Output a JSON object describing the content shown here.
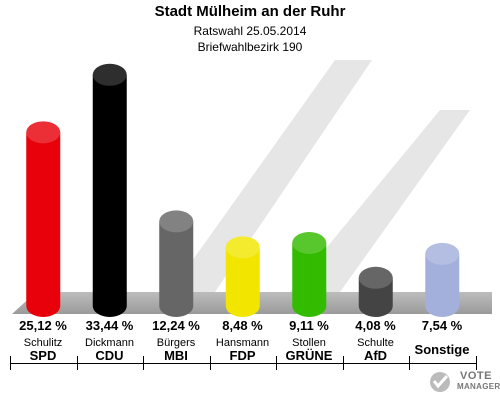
{
  "header": {
    "title": "Stadt Mülheim an der Ruhr",
    "subtitle": "Ratswahl 25.05.2014",
    "district": "Briefwahlbezirk 190"
  },
  "chart_data": {
    "type": "bar",
    "categories": [
      "SPD",
      "CDU",
      "MBI",
      "FDP",
      "GRÜNE",
      "AfD",
      "Sonstige"
    ],
    "candidates": [
      "Schulitz",
      "Dickmann",
      "Bürgers",
      "Hansmann",
      "Stollen",
      "Schulte",
      ""
    ],
    "values": [
      25.12,
      33.44,
      12.24,
      8.48,
      9.11,
      4.08,
      7.54
    ],
    "value_labels": [
      "25,12 %",
      "33,44 %",
      "12,24 %",
      "8,48 %",
      "9,11 %",
      "4,08 %",
      "7,54 %"
    ],
    "colors": [
      "#e8000a",
      "#000000",
      "#666666",
      "#f2e600",
      "#33bb00",
      "#444444",
      "#a4b0dc"
    ],
    "ylim": [
      0,
      35
    ],
    "grid": false,
    "legend": "none"
  },
  "logo": {
    "line1": "VOTE",
    "line2": "MANAGER"
  }
}
